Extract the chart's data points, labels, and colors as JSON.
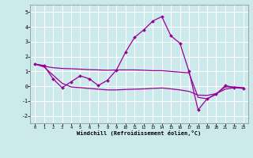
{
  "background_color": "#cce9eb",
  "line_color": "#990099",
  "grid_color": "#ffffff",
  "xlabel": "Windchill (Refroidissement éolien,°C)",
  "hours": [
    0,
    1,
    2,
    3,
    4,
    5,
    6,
    7,
    8,
    9,
    10,
    11,
    12,
    13,
    14,
    15,
    16,
    17,
    18,
    19,
    20,
    21,
    22,
    23
  ],
  "main_line": [
    1.5,
    1.4,
    0.5,
    -0.1,
    0.3,
    0.7,
    0.5,
    0.05,
    0.4,
    1.1,
    2.3,
    3.3,
    3.8,
    4.4,
    4.7,
    3.4,
    2.9,
    1.0,
    -1.6,
    -0.85,
    -0.55,
    0.05,
    -0.1,
    -0.15
  ],
  "upper_line": [
    1.5,
    1.35,
    1.25,
    1.2,
    1.18,
    1.15,
    1.12,
    1.1,
    1.08,
    1.1,
    1.1,
    1.1,
    1.08,
    1.05,
    1.05,
    1.0,
    0.95,
    0.9,
    -0.75,
    -0.85,
    -0.5,
    -0.05,
    -0.05,
    -0.1
  ],
  "lower_line": [
    1.5,
    1.3,
    0.75,
    0.2,
    -0.05,
    -0.1,
    -0.15,
    -0.2,
    -0.25,
    -0.25,
    -0.22,
    -0.2,
    -0.18,
    -0.15,
    -0.12,
    -0.18,
    -0.25,
    -0.35,
    -0.6,
    -0.62,
    -0.5,
    -0.2,
    -0.1,
    -0.12
  ],
  "ylim": [
    -2.5,
    5.5
  ],
  "yticks": [
    -2,
    -1,
    0,
    1,
    2,
    3,
    4,
    5
  ],
  "xlim": [
    -0.5,
    23.5
  ],
  "figsize": [
    3.2,
    2.0
  ],
  "dpi": 100
}
